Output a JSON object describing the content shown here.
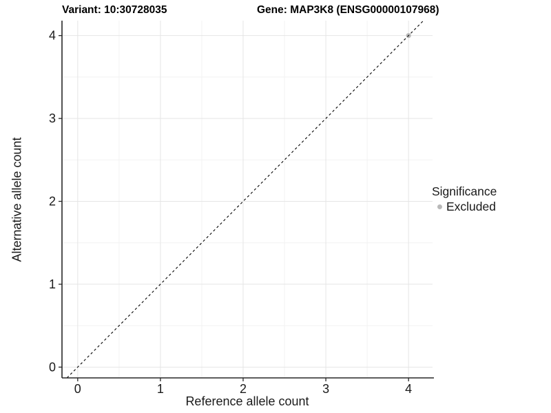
{
  "header": {
    "variant_title": "Variant: 10:30728035",
    "gene_title": "Gene: MAP3K8 (ENSG00000107968)"
  },
  "chart_data": {
    "type": "scatter",
    "title_left": "Variant: 10:30728035",
    "title_right": "Gene: MAP3K8 (ENSG00000107968)",
    "xlabel": "Reference allele count",
    "ylabel": "Alternative allele count",
    "x_ticks": [
      0,
      1,
      2,
      3,
      4
    ],
    "y_ticks": [
      0,
      1,
      2,
      3,
      4
    ],
    "x_minor_ticks": [
      0.5,
      1.5,
      2.5,
      3.5
    ],
    "y_minor_ticks": [
      0.5,
      1.5,
      2.5,
      3.5
    ],
    "xlim": [
      -0.19,
      4.29
    ],
    "ylim": [
      -0.13,
      4.18
    ],
    "grid": true,
    "series": [
      {
        "name": "Excluded",
        "points": [
          {
            "x": 4,
            "y": 4
          }
        ]
      }
    ],
    "reference_line": {
      "slope": 1,
      "intercept": 0,
      "style": "dashed"
    },
    "legend": {
      "title": "Significance",
      "position": "right",
      "items": [
        {
          "label": "Excluded",
          "color": "#b9b9b9"
        }
      ]
    },
    "colors": {
      "point_excluded": "#b9b9b9",
      "grid_major": "#e5e5e5",
      "grid_minor": "#f2f2f2",
      "axis_line": "#262626",
      "tick_label": "#1a1a1a",
      "dashed_line": "#000000",
      "background": "#ffffff"
    }
  }
}
